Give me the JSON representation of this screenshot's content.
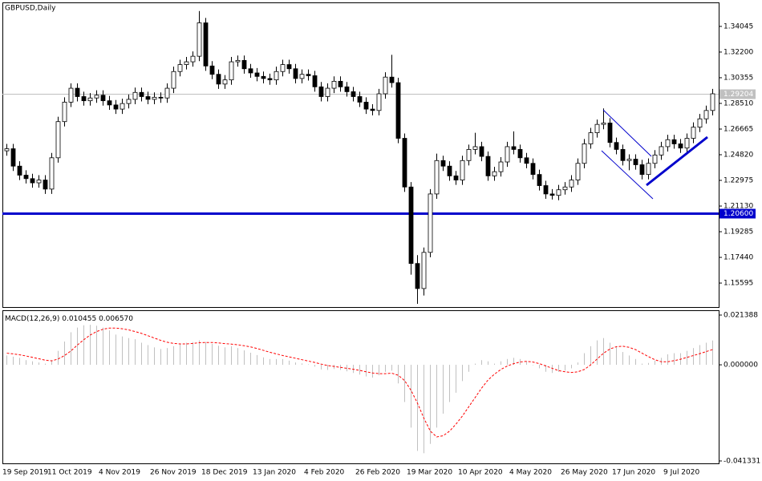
{
  "chart_data": [
    {
      "type": "candlestick",
      "title": "GBPUSD,Daily",
      "categories": [
        "19 Sep 2019",
        null,
        null,
        null,
        null,
        null,
        null,
        "11 Oct 2019",
        null,
        null,
        null,
        null,
        null,
        null,
        null,
        "4 Nov 2019",
        null,
        null,
        null,
        null,
        null,
        null,
        null,
        "26 Nov 2019",
        null,
        null,
        null,
        null,
        null,
        null,
        null,
        "18 Dec 2019",
        null,
        null,
        null,
        null,
        null,
        null,
        null,
        "13 Jan 2020",
        null,
        null,
        null,
        null,
        null,
        null,
        null,
        "4 Feb 2020",
        null,
        null,
        null,
        null,
        null,
        null,
        null,
        "26 Feb 2020",
        null,
        null,
        null,
        null,
        null,
        null,
        null,
        "19 Mar 2020",
        null,
        null,
        null,
        null,
        null,
        null,
        null,
        "10 Apr 2020",
        null,
        null,
        null,
        null,
        null,
        null,
        null,
        "4 May 2020",
        null,
        null,
        null,
        null,
        null,
        null,
        null,
        "26 May 2020",
        null,
        null,
        null,
        null,
        null,
        null,
        null,
        "17 Jun 2020",
        null,
        null,
        null,
        null,
        null,
        null,
        null,
        "9 Jul 2020",
        null,
        null,
        null,
        null,
        null,
        null,
        null
      ],
      "open": [
        1.251,
        1.2525,
        1.24,
        1.2335,
        1.231,
        1.228,
        1.23,
        1.2235,
        1.246,
        1.272,
        1.286,
        1.296,
        1.29,
        1.287,
        1.289,
        1.291,
        1.287,
        1.284,
        1.281,
        1.285,
        1.288,
        1.293,
        1.29,
        1.288,
        1.2895,
        1.289,
        1.296,
        1.308,
        1.313,
        1.315,
        1.319,
        1.343,
        1.312,
        1.306,
        1.299,
        1.302,
        1.315,
        1.316,
        1.31,
        1.307,
        1.3045,
        1.303,
        1.302,
        1.308,
        1.313,
        1.31,
        1.303,
        1.306,
        1.305,
        1.297,
        1.29,
        1.296,
        1.301,
        1.297,
        1.2935,
        1.29,
        1.286,
        1.281,
        1.28,
        1.292,
        1.304,
        1.3,
        1.26,
        1.225,
        1.17,
        1.152,
        1.178,
        1.22,
        1.244,
        1.24,
        1.233,
        1.23,
        1.244,
        1.252,
        1.254,
        1.247,
        1.233,
        1.236,
        1.243,
        1.254,
        1.252,
        1.246,
        1.242,
        1.234,
        1.226,
        1.22,
        1.219,
        1.223,
        1.225,
        1.23,
        1.242,
        1.256,
        1.264,
        1.27,
        1.271,
        1.257,
        1.252,
        1.244,
        1.245,
        1.241,
        1.234,
        1.242,
        1.248,
        1.254,
        1.259,
        1.256,
        1.253,
        1.26,
        1.268,
        1.274,
        1.28
      ],
      "high": [
        1.256,
        1.256,
        1.2435,
        1.237,
        1.2345,
        1.2335,
        1.2335,
        1.2495,
        1.2755,
        1.2895,
        1.2995,
        1.2995,
        1.2935,
        1.2925,
        1.2945,
        1.2945,
        1.2905,
        1.2875,
        1.2885,
        1.2915,
        1.2965,
        1.2965,
        1.2935,
        1.293,
        1.293,
        1.2995,
        1.3115,
        1.3165,
        1.3185,
        1.3225,
        1.3515,
        1.3465,
        1.3155,
        1.3095,
        1.3055,
        1.3185,
        1.3195,
        1.3195,
        1.3135,
        1.3105,
        1.308,
        1.3065,
        1.3115,
        1.3165,
        1.3165,
        1.3135,
        1.3095,
        1.3095,
        1.3085,
        1.3005,
        1.2995,
        1.3045,
        1.3045,
        1.3005,
        1.297,
        1.2935,
        1.2895,
        1.2845,
        1.2955,
        1.3075,
        1.32,
        1.3035,
        1.2635,
        1.2285,
        1.176,
        1.1815,
        1.2235,
        1.249,
        1.2475,
        1.2435,
        1.2365,
        1.2475,
        1.2555,
        1.264,
        1.2575,
        1.2505,
        1.2395,
        1.2465,
        1.2575,
        1.265,
        1.2555,
        1.2495,
        1.2455,
        1.2375,
        1.2295,
        1.2235,
        1.2265,
        1.2285,
        1.2335,
        1.2455,
        1.2595,
        1.2675,
        1.2735,
        1.2815,
        1.2745,
        1.2605,
        1.2555,
        1.2485,
        1.2485,
        1.2445,
        1.2455,
        1.2515,
        1.2575,
        1.2625,
        1.2625,
        1.2595,
        1.2635,
        1.2715,
        1.2775,
        1.2835,
        1.2955
      ],
      "low": [
        1.2475,
        1.2365,
        1.23,
        1.2275,
        1.2245,
        1.2245,
        1.22,
        1.22,
        1.2425,
        1.2685,
        1.2825,
        1.2865,
        1.2835,
        1.2835,
        1.2855,
        1.2835,
        1.2805,
        1.2775,
        1.2775,
        1.2815,
        1.2845,
        1.2865,
        1.2845,
        1.2845,
        1.2855,
        1.2855,
        1.2925,
        1.3045,
        1.3095,
        1.3115,
        1.3155,
        1.3085,
        1.3025,
        1.2955,
        1.2955,
        1.2985,
        1.3115,
        1.3065,
        1.3035,
        1.301,
        1.2995,
        1.2985,
        1.2985,
        1.3045,
        1.3065,
        1.2995,
        1.2995,
        1.3015,
        1.2935,
        1.2865,
        1.2865,
        1.2925,
        1.2935,
        1.29,
        1.2865,
        1.2825,
        1.2775,
        1.2765,
        1.2765,
        1.2885,
        1.2965,
        1.2565,
        1.2215,
        1.162,
        1.141,
        1.147,
        1.1745,
        1.2165,
        1.2365,
        1.2295,
        1.2265,
        1.2265,
        1.2405,
        1.2485,
        1.2435,
        1.2295,
        1.2295,
        1.2325,
        1.2395,
        1.2485,
        1.2425,
        1.2385,
        1.2305,
        1.2225,
        1.2165,
        1.216,
        1.2155,
        1.2195,
        1.2215,
        1.2265,
        1.2385,
        1.2525,
        1.2605,
        1.2665,
        1.2535,
        1.2485,
        1.2405,
        1.237,
        1.2375,
        1.2305,
        1.2305,
        1.2385,
        1.2445,
        1.2505,
        1.2525,
        1.2495,
        1.2495,
        1.2565,
        1.2645,
        1.2705,
        1.2765
      ],
      "close": [
        1.2525,
        1.24,
        1.2335,
        1.231,
        1.228,
        1.23,
        1.2235,
        1.246,
        1.272,
        1.286,
        1.296,
        1.29,
        1.287,
        1.289,
        1.291,
        1.287,
        1.284,
        1.281,
        1.285,
        1.288,
        1.293,
        1.29,
        1.288,
        1.2895,
        1.289,
        1.296,
        1.308,
        1.313,
        1.315,
        1.319,
        1.343,
        1.312,
        1.306,
        1.299,
        1.302,
        1.315,
        1.316,
        1.31,
        1.307,
        1.3045,
        1.303,
        1.302,
        1.308,
        1.313,
        1.31,
        1.303,
        1.306,
        1.305,
        1.297,
        1.29,
        1.296,
        1.301,
        1.297,
        1.2935,
        1.29,
        1.286,
        1.281,
        1.28,
        1.292,
        1.304,
        1.3,
        1.26,
        1.225,
        1.17,
        1.152,
        1.178,
        1.22,
        1.244,
        1.24,
        1.233,
        1.23,
        1.244,
        1.252,
        1.254,
        1.247,
        1.233,
        1.236,
        1.243,
        1.254,
        1.252,
        1.246,
        1.242,
        1.234,
        1.226,
        1.22,
        1.219,
        1.223,
        1.225,
        1.23,
        1.242,
        1.256,
        1.264,
        1.27,
        1.271,
        1.257,
        1.252,
        1.244,
        1.245,
        1.241,
        1.234,
        1.242,
        1.248,
        1.254,
        1.259,
        1.256,
        1.253,
        1.26,
        1.268,
        1.274,
        1.28,
        1.292
      ],
      "bull_color": "#ffffff",
      "bear_color": "#000000",
      "outline_color": "#000000",
      "ylim": [
        1.1387,
        1.3577
      ],
      "yticks": [
        {
          "value": 1.34045,
          "label": "1.34045"
        },
        {
          "value": 1.322,
          "label": "1.32200"
        },
        {
          "value": 1.30355,
          "label": "1.30355"
        },
        {
          "value": 1.2851,
          "label": "1.28510"
        },
        {
          "value": 1.26665,
          "label": "1.26665"
        },
        {
          "value": 1.2482,
          "label": "1.24820"
        },
        {
          "value": 1.22975,
          "label": "1.22975"
        },
        {
          "value": 1.2113,
          "label": "1.21130"
        },
        {
          "value": 1.19285,
          "label": "1.19285"
        },
        {
          "value": 1.1744,
          "label": "1.17440"
        },
        {
          "value": 1.15595,
          "label": "1.15595"
        }
      ],
      "hlines": [
        {
          "value": 1.29204,
          "label": "1.29204",
          "color": "#c0c0c0",
          "width": 1
        },
        {
          "value": 1.206,
          "label": "1.20600",
          "color": "#0000cc",
          "width": 3
        }
      ],
      "grid": false
    },
    {
      "type": "macd",
      "title": "MACD(12,26,9)",
      "readout": [
        "0.010455",
        "0.006570"
      ],
      "series": [
        {
          "color": "#c0c0c0",
          "style": "histogram",
          "values": [
            0.004,
            0.0035,
            0.003,
            0.002,
            0.0015,
            0.001,
            0.0005,
            0.002,
            0.006,
            0.01,
            0.014,
            0.016,
            0.017,
            0.0172,
            0.0168,
            0.016,
            0.0148,
            0.013,
            0.0122,
            0.0115,
            0.011,
            0.0095,
            0.0085,
            0.0075,
            0.0068,
            0.0072,
            0.008,
            0.009,
            0.0095,
            0.0098,
            0.0105,
            0.0098,
            0.009,
            0.0082,
            0.0075,
            0.008,
            0.0072,
            0.0062,
            0.0052,
            0.0042,
            0.0032,
            0.0025,
            0.0025,
            0.0025,
            0.0018,
            0.001,
            0.0006,
            0.0002,
            -0.0008,
            -0.002,
            -0.0022,
            -0.0018,
            -0.0022,
            -0.0028,
            -0.0035,
            -0.0042,
            -0.005,
            -0.0055,
            -0.0045,
            -0.003,
            -0.0025,
            -0.008,
            -0.016,
            -0.027,
            -0.037,
            -0.038,
            -0.034,
            -0.027,
            -0.021,
            -0.016,
            -0.012,
            -0.007,
            -0.003,
            0.0005,
            0.002,
            0.0015,
            0.0005,
            0.0015,
            0.0025,
            0.003,
            0.0025,
            0.0015,
            0.0,
            -0.0015,
            -0.003,
            -0.0035,
            -0.003,
            -0.0025,
            -0.0015,
            0.001,
            0.005,
            0.008,
            0.0105,
            0.0115,
            0.0095,
            0.008,
            0.0055,
            0.004,
            0.0025,
            0.0005,
            0.0008,
            0.0018,
            0.003,
            0.0045,
            0.005,
            0.005,
            0.006,
            0.0072,
            0.0085,
            0.0095,
            0.010455
          ]
        },
        {
          "color": "#ff0000",
          "style": "dashed",
          "values": [
            0.005,
            0.0047,
            0.0043,
            0.0038,
            0.0032,
            0.0026,
            0.002,
            0.0017,
            0.0025,
            0.004,
            0.006,
            0.0085,
            0.0108,
            0.0128,
            0.0143,
            0.0153,
            0.0158,
            0.0158,
            0.0155,
            0.015,
            0.0143,
            0.0135,
            0.0125,
            0.0115,
            0.0105,
            0.0097,
            0.0092,
            0.009,
            0.009,
            0.0092,
            0.0095,
            0.0096,
            0.0096,
            0.0094,
            0.0091,
            0.0089,
            0.0086,
            0.0082,
            0.0077,
            0.007,
            0.0062,
            0.0054,
            0.0047,
            0.004,
            0.0034,
            0.0028,
            0.0022,
            0.0016,
            0.001,
            0.0003,
            -0.0003,
            -0.0007,
            -0.0011,
            -0.0015,
            -0.0019,
            -0.0024,
            -0.003,
            -0.0035,
            -0.0038,
            -0.0038,
            -0.0036,
            -0.0045,
            -0.0068,
            -0.011,
            -0.0165,
            -0.023,
            -0.0285,
            -0.031,
            -0.0305,
            -0.0285,
            -0.0255,
            -0.022,
            -0.018,
            -0.014,
            -0.01,
            -0.0065,
            -0.004,
            -0.002,
            -0.0005,
            0.0005,
            0.0012,
            0.0015,
            0.0012,
            0.0005,
            -0.0005,
            -0.0015,
            -0.0025,
            -0.003,
            -0.0033,
            -0.003,
            -0.002,
            0.0,
            0.0025,
            0.005,
            0.0068,
            0.0078,
            0.008,
            0.0075,
            0.0065,
            0.005,
            0.0035,
            0.0022,
            0.0013,
            0.0013,
            0.0018,
            0.0024,
            0.0032,
            0.004,
            0.0048,
            0.0057,
            0.00657
          ]
        }
      ],
      "ylim": [
        -0.04237,
        0.02346
      ],
      "yticks": [
        0.021388,
        {
          "value": 0,
          "label": "0.000000"
        },
        -0.041331
      ],
      "grid": false
    }
  ]
}
